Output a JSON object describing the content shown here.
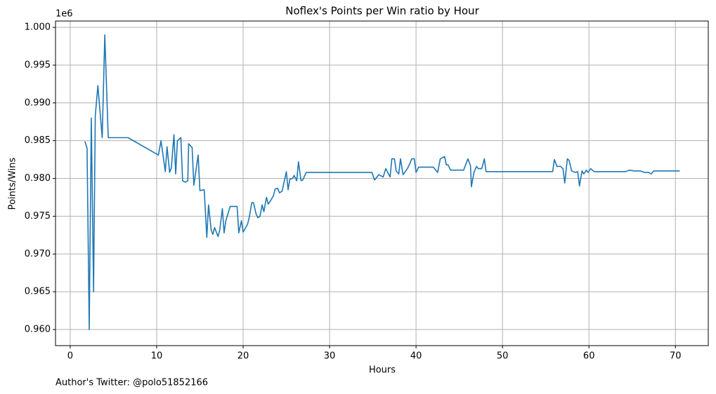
{
  "chart_data": {
    "type": "line",
    "title": "Noflex's Points per Win ratio by Hour",
    "x_label": "Hours",
    "y_label": "Points/Wins",
    "y_offset": "1e6",
    "footnote": "Author's Twitter: @polo51852166",
    "color": "#1f77b4",
    "grid": true,
    "xlim": [
      -1.7,
      73.8
    ],
    "ylim": [
      0.95787,
      1.00084
    ],
    "xticks": [
      0,
      10,
      20,
      30,
      40,
      50,
      60,
      70
    ],
    "yticks": [
      {
        "value": 0.96,
        "label": "0.960"
      },
      {
        "value": 0.965,
        "label": "0.965"
      },
      {
        "value": 0.97,
        "label": "0.970"
      },
      {
        "value": 0.975,
        "label": "0.975"
      },
      {
        "value": 0.98,
        "label": "0.980"
      },
      {
        "value": 0.985,
        "label": "0.985"
      },
      {
        "value": 0.99,
        "label": "0.990"
      },
      {
        "value": 0.995,
        "label": "0.995"
      },
      {
        "value": 1.0,
        "label": "1.000"
      }
    ],
    "x": [
      1.7,
      1.95,
      2.2,
      2.44,
      2.7,
      2.9,
      3.2,
      3.7,
      4.0,
      4.4,
      6.7,
      10.2,
      10.5,
      11.0,
      11.2,
      11.5,
      11.7,
      12.0,
      12.2,
      12.4,
      12.8,
      13.0,
      13.3,
      13.6,
      13.7,
      14.1,
      14.3,
      14.8,
      15.0,
      15.5,
      15.8,
      16.0,
      16.3,
      16.5,
      16.7,
      17.1,
      17.3,
      17.6,
      17.8,
      18.0,
      18.5,
      19.3,
      19.5,
      19.8,
      20.0,
      20.5,
      20.7,
      21.0,
      21.2,
      21.5,
      21.7,
      21.95,
      22.2,
      22.4,
      22.7,
      22.9,
      23.25,
      23.5,
      23.7,
      24.0,
      24.2,
      24.5,
      24.7,
      25.0,
      25.2,
      25.4,
      25.7,
      25.9,
      26.2,
      26.4,
      26.7,
      26.9,
      27.3,
      34.9,
      35.2,
      35.7,
      36.2,
      36.5,
      37.0,
      37.2,
      37.5,
      37.7,
      38.0,
      38.2,
      38.5,
      39.0,
      39.3,
      39.5,
      39.8,
      40.0,
      40.3,
      41.1,
      42.0,
      42.5,
      42.8,
      43.3,
      43.5,
      43.7,
      44.0,
      45.5,
      46.0,
      46.3,
      46.4,
      46.7,
      47.0,
      47.2,
      47.6,
      47.9,
      48.1,
      55.8,
      56.0,
      56.3,
      56.7,
      57.0,
      57.2,
      57.5,
      57.7,
      58.0,
      58.4,
      58.7,
      58.9,
      59.2,
      59.4,
      59.7,
      59.9,
      60.2,
      60.6,
      64.2,
      64.7,
      65.2,
      65.9,
      66.4,
      66.9,
      67.2,
      67.5,
      70.5
    ],
    "values": [
      0.9849,
      0.984,
      0.96,
      0.988,
      0.965,
      0.9883,
      0.9923,
      0.9854,
      0.999,
      0.9854,
      0.9854,
      0.9831,
      0.985,
      0.9809,
      0.9842,
      0.9808,
      0.9814,
      0.9858,
      0.9806,
      0.985,
      0.9854,
      0.9797,
      0.9795,
      0.9797,
      0.9846,
      0.9841,
      0.9791,
      0.9831,
      0.9784,
      0.9785,
      0.9722,
      0.9765,
      0.9732,
      0.9726,
      0.9735,
      0.9723,
      0.9732,
      0.976,
      0.9728,
      0.9744,
      0.9763,
      0.9763,
      0.9728,
      0.9744,
      0.9729,
      0.9739,
      0.9748,
      0.9768,
      0.9768,
      0.9753,
      0.9748,
      0.975,
      0.9765,
      0.9756,
      0.9775,
      0.9766,
      0.9772,
      0.9777,
      0.9786,
      0.9787,
      0.9781,
      0.9783,
      0.9793,
      0.9809,
      0.9785,
      0.9799,
      0.98,
      0.9804,
      0.9797,
      0.9822,
      0.9797,
      0.9798,
      0.9808,
      0.9808,
      0.9798,
      0.9805,
      0.9802,
      0.9813,
      0.9802,
      0.9826,
      0.9826,
      0.981,
      0.9806,
      0.9826,
      0.9805,
      0.9813,
      0.982,
      0.9826,
      0.9826,
      0.9808,
      0.9815,
      0.9815,
      0.9815,
      0.9808,
      0.9826,
      0.9829,
      0.9818,
      0.9818,
      0.9811,
      0.9811,
      0.9826,
      0.9817,
      0.9789,
      0.9808,
      0.9816,
      0.9813,
      0.9813,
      0.9826,
      0.9809,
      0.9809,
      0.9825,
      0.9816,
      0.9816,
      0.9813,
      0.9794,
      0.9826,
      0.9824,
      0.981,
      0.9808,
      0.9809,
      0.979,
      0.981,
      0.9806,
      0.9811,
      0.9808,
      0.9813,
      0.9809,
      0.9809,
      0.9811,
      0.981,
      0.981,
      0.9808,
      0.9808,
      0.9806,
      0.981,
      0.981
    ]
  }
}
